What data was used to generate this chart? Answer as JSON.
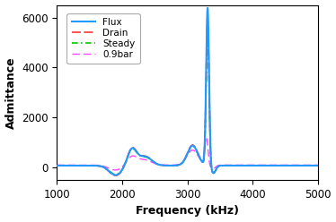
{
  "title": "",
  "xlabel": "Frequency (kHz)",
  "ylabel": "Admittance",
  "xlim": [
    1000,
    5000
  ],
  "ylim": [
    -500,
    6500
  ],
  "yticks": [
    0,
    2000,
    4000,
    6000
  ],
  "xticks": [
    1000,
    2000,
    3000,
    4000,
    5000
  ],
  "legend_labels": [
    "Flux",
    "Drain",
    "Steady",
    "0.9bar"
  ],
  "colors": [
    "#2299ff",
    "#ff3333",
    "#00cc00",
    "#ff44ff"
  ],
  "bg_color": "#ffffff",
  "figsize": [
    3.74,
    2.48
  ],
  "dpi": 100
}
